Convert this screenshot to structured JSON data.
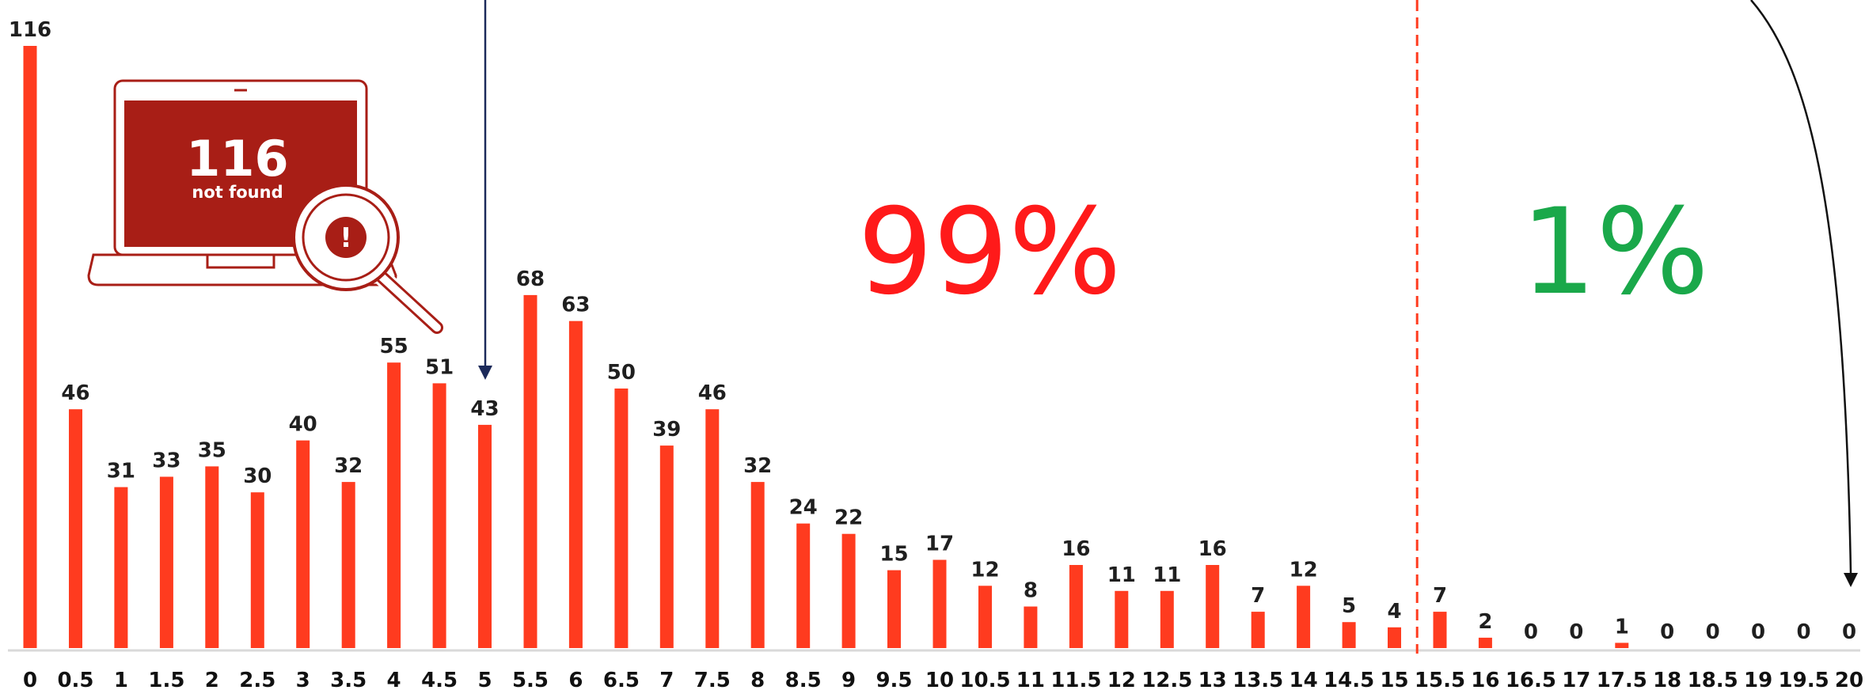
{
  "chart_data": {
    "type": "bar",
    "categories": [
      "0",
      "0.5",
      "1",
      "1.5",
      "2",
      "2.5",
      "3",
      "3.5",
      "4",
      "4.5",
      "5",
      "5.5",
      "6",
      "6.5",
      "7",
      "7.5",
      "8",
      "8.5",
      "9",
      "9.5",
      "10",
      "10.5",
      "11",
      "11.5",
      "12",
      "12.5",
      "13",
      "13.5",
      "14",
      "14.5",
      "15",
      "15.5",
      "16",
      "16.5",
      "17",
      "17.5",
      "18",
      "18.5",
      "19",
      "19.5",
      "20"
    ],
    "values": [
      116,
      46,
      31,
      33,
      35,
      30,
      40,
      32,
      55,
      51,
      43,
      68,
      63,
      50,
      39,
      46,
      32,
      24,
      22,
      15,
      17,
      12,
      8,
      16,
      11,
      11,
      16,
      7,
      12,
      5,
      4,
      7,
      2,
      0,
      0,
      1,
      0,
      0,
      0,
      0,
      0
    ],
    "data_labels": [
      "116",
      "46",
      "31",
      "33",
      "35",
      "30",
      "40",
      "32",
      "55",
      "51",
      "43",
      "68",
      "63",
      "50",
      "39",
      "46",
      "32",
      "24",
      "22",
      "15",
      "17",
      "12",
      "8",
      "16",
      "11",
      "11",
      "16",
      "7",
      "12",
      "5",
      "4",
      "7",
      "2",
      "0",
      "0",
      "1",
      "0",
      "0",
      "0",
      "0",
      "0"
    ],
    "ylim": [
      0,
      116
    ],
    "grid": false,
    "threshold_x": "15",
    "annotations": {
      "left_percent": "99%",
      "right_percent": "1%"
    },
    "colors": {
      "bar": "#ff3b1f",
      "threshold_line": "#ff3b1f",
      "left_percent": "#ff1a1a",
      "right_percent": "#1aa84a",
      "arrow": "#1c2a5a",
      "laptop": "#a81e16"
    }
  },
  "laptop_graphic": {
    "icon": "laptop-search-icon",
    "number": "116",
    "caption": "not found",
    "badge_icon": "exclamation-icon",
    "badge_symbol": "!"
  }
}
